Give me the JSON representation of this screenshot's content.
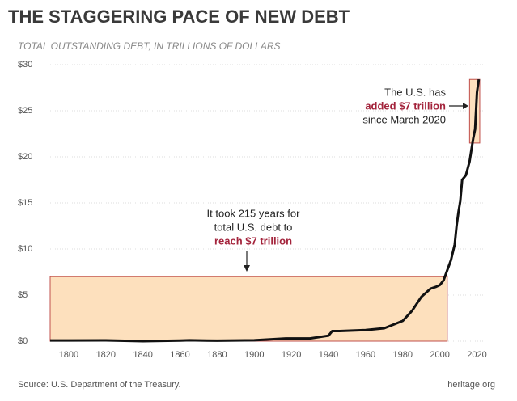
{
  "chart_data": {
    "type": "line",
    "title": "THE STAGGERING PACE OF NEW DEBT",
    "subtitle": "TOTAL OUTSTANDING DEBT, IN TRILLIONS OF DOLLARS",
    "source": "Source: U.S. Department of the Treasury.",
    "credit": "heritage.org",
    "series": [
      {
        "color": "#111111",
        "x": [
          1790,
          1800,
          1820,
          1840,
          1860,
          1865,
          1880,
          1900,
          1917,
          1919,
          1930,
          1940,
          1942,
          1946,
          1960,
          1970,
          1975,
          1980,
          1985,
          1990,
          1995,
          1998,
          2000,
          2002,
          2004,
          2006,
          2008,
          2009,
          2010,
          2011,
          2012,
          2014,
          2016,
          2017,
          2018,
          2019,
          2020,
          2021
        ],
        "values": [
          0.08,
          0.08,
          0.09,
          0.0,
          0.06,
          0.1,
          0.05,
          0.1,
          0.3,
          0.3,
          0.3,
          0.6,
          1.1,
          1.1,
          1.2,
          1.4,
          1.8,
          2.2,
          3.3,
          4.8,
          5.7,
          5.9,
          6.1,
          6.6,
          7.7,
          8.8,
          10.5,
          12.5,
          14.0,
          15.2,
          17.5,
          18.0,
          19.5,
          20.8,
          22.0,
          23.0,
          27.0,
          28.4
        ]
      }
    ],
    "highlights": [
      {
        "xlim": [
          1790,
          2004
        ],
        "ylim": [
          0,
          7
        ],
        "color": "#fde0bd"
      },
      {
        "xlim": [
          2016,
          2021.5
        ],
        "ylim": [
          21.5,
          28.4
        ],
        "color": "#fde0bd"
      }
    ],
    "annotations": [
      [
        "The U.S. has",
        "added $7 trillion",
        "since March 2020"
      ],
      [
        "It took 215 years for",
        "total U.S. debt to",
        "reach $7 trillion"
      ]
    ],
    "xlim": [
      1790,
      2025
    ],
    "xticks": [
      1800,
      1820,
      1840,
      1860,
      1880,
      1900,
      1920,
      1940,
      1960,
      1980,
      2000,
      2020
    ],
    "ylim": [
      0,
      30
    ],
    "yticks": [
      {
        "value": 0,
        "label": "$0"
      },
      {
        "value": 5,
        "label": "$5"
      },
      {
        "value": 10,
        "label": "$10"
      },
      {
        "value": 15,
        "label": "$15"
      },
      {
        "value": 20,
        "label": "$20"
      },
      {
        "value": 25,
        "label": "$25"
      },
      {
        "value": 30,
        "label": "$30"
      }
    ],
    "grid": true
  }
}
